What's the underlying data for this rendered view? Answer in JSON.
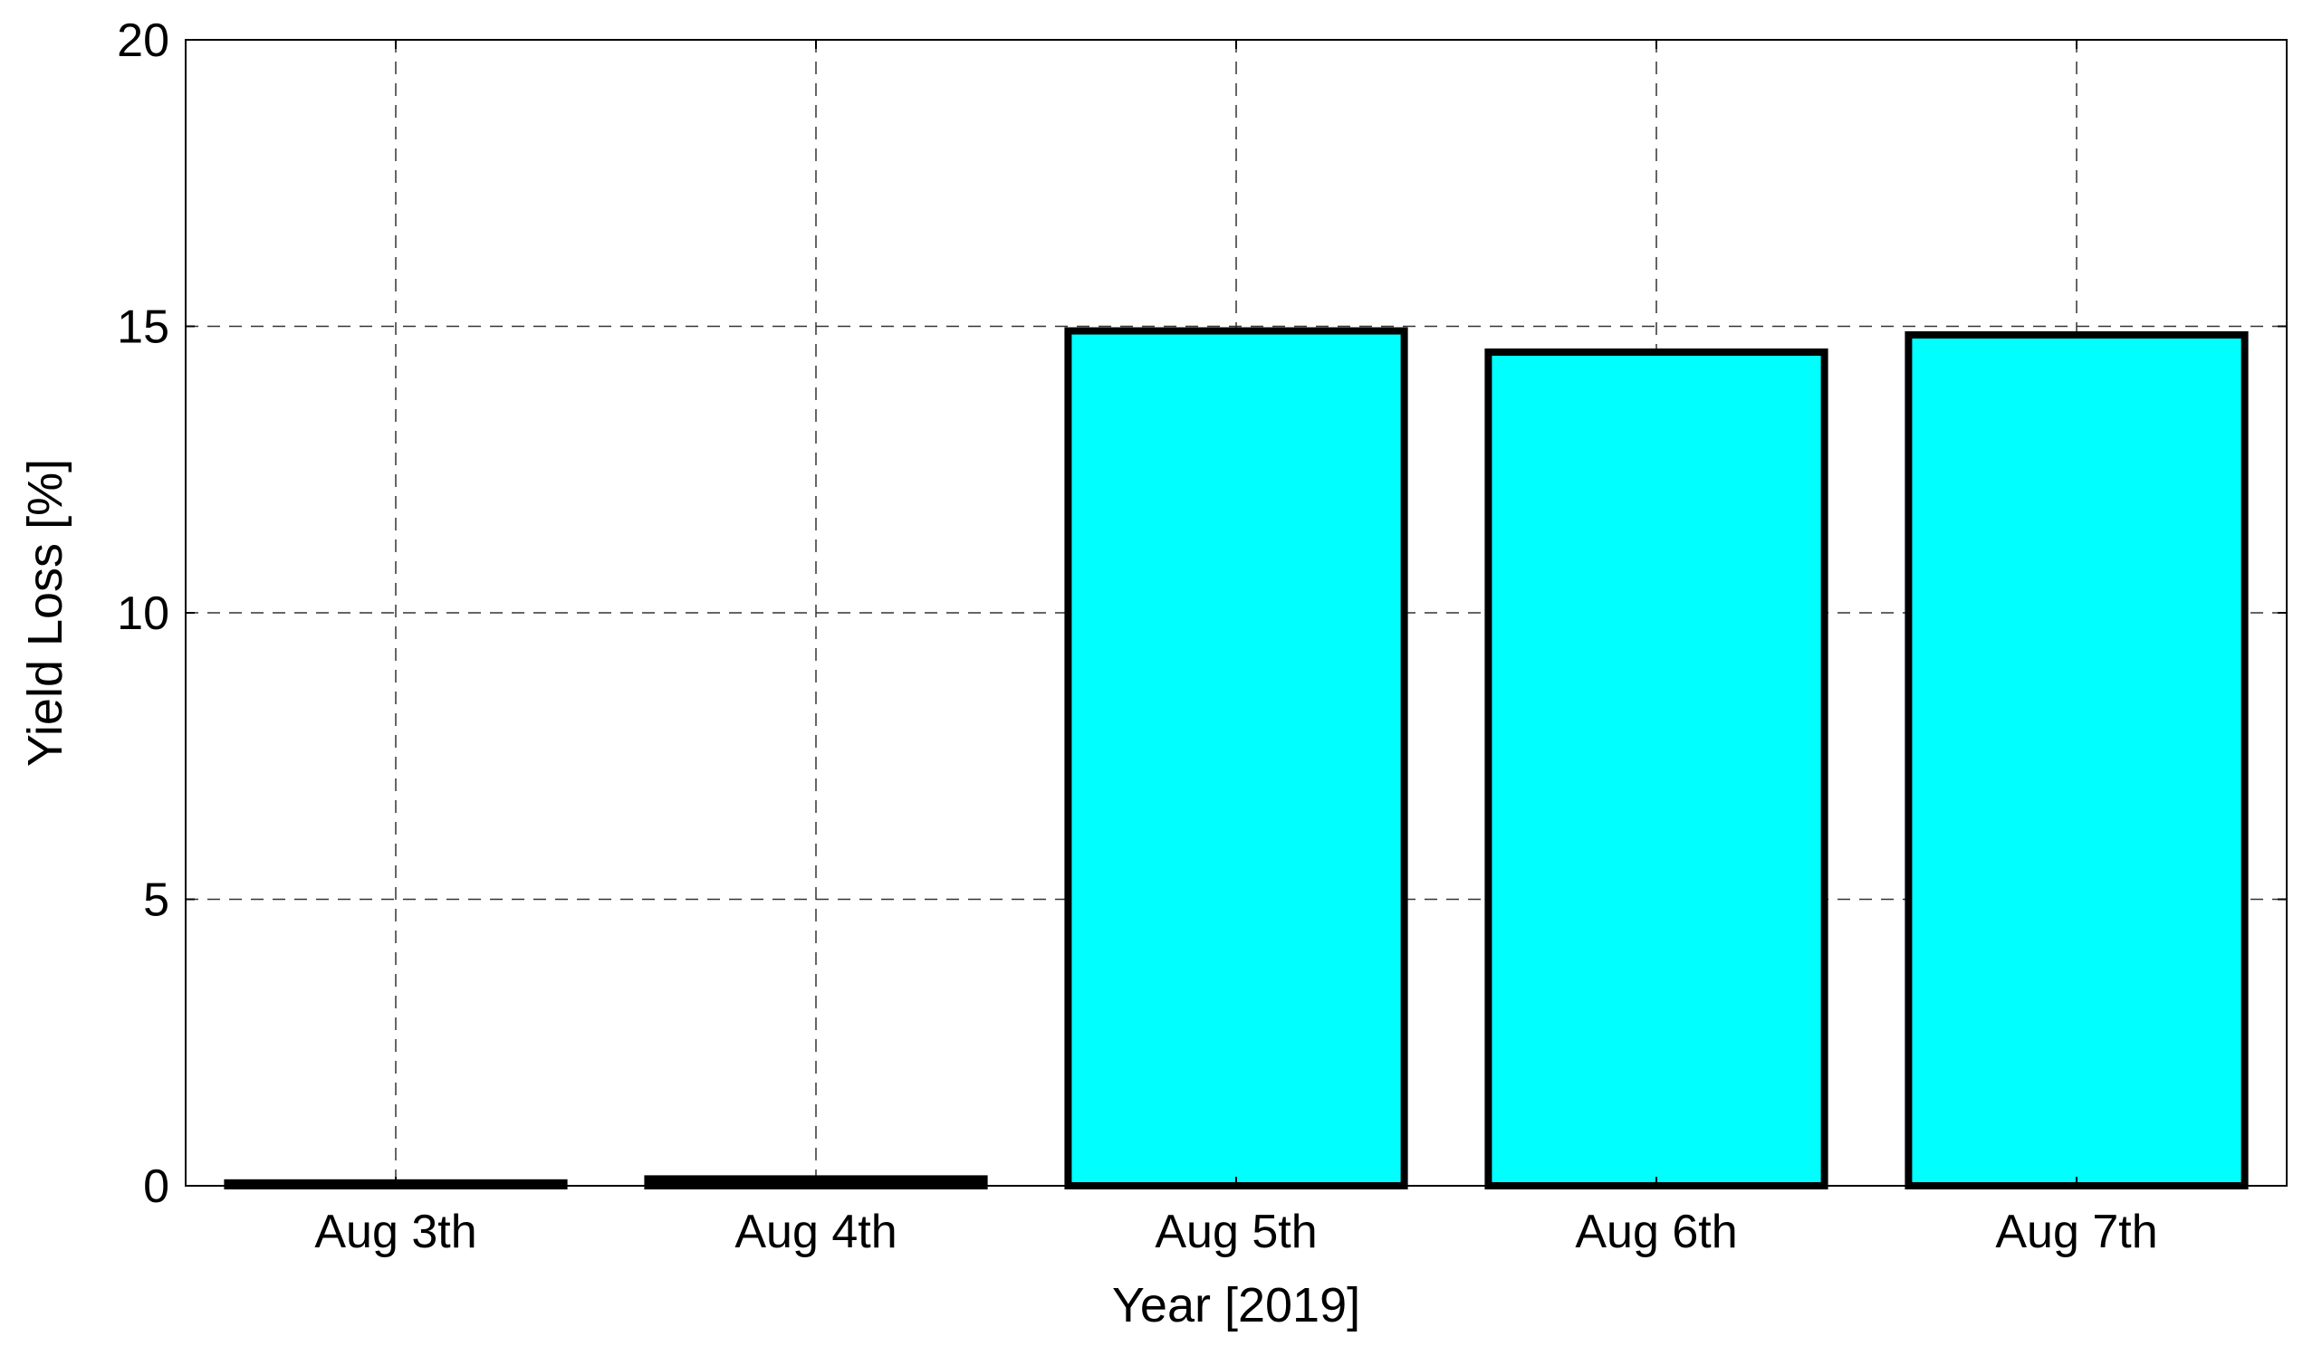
{
  "chart_data": {
    "type": "bar",
    "title": "",
    "xlabel": "Year [2019]",
    "ylabel": "Yield Loss [%]",
    "categories": [
      "Aug 3th",
      "Aug 4th",
      "Aug 5th",
      "Aug 6th",
      "Aug 7th"
    ],
    "values": [
      0.05,
      0.12,
      14.92,
      14.55,
      14.85
    ],
    "ylim": [
      0,
      20
    ],
    "yticks": [
      "0",
      "5",
      "10",
      "15",
      "20"
    ],
    "grid": true,
    "bar_color": "#00ffff",
    "edge_color": "#000000"
  }
}
